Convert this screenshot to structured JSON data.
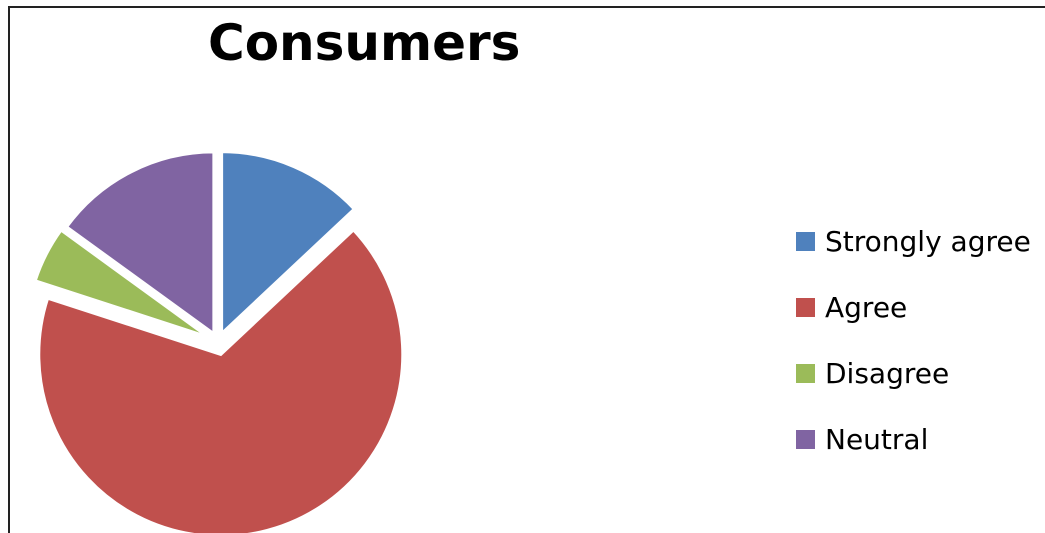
{
  "chart_data": {
    "type": "pie",
    "title": "Consumers",
    "categories": [
      "Strongly agree",
      "Agree",
      "Disagree",
      "Neutral"
    ],
    "values": [
      13,
      67,
      5,
      15
    ],
    "colors": [
      "#4f81bd",
      "#c0504d",
      "#9bbb59",
      "#8064a2"
    ],
    "exploded": true,
    "legend_position": "right"
  }
}
